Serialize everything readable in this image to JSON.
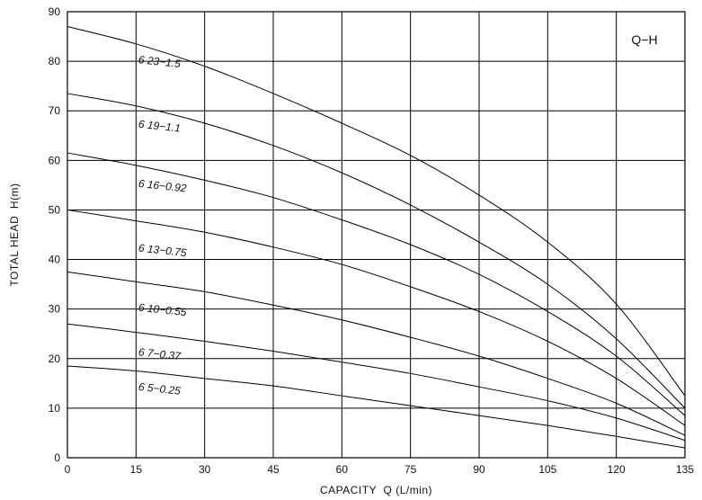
{
  "chart_data": {
    "type": "line",
    "title": "Q−H",
    "xlabel": "CAPACITY  Q (L/min)",
    "ylabel": "TOTAL HEAD  H(m)",
    "xlim": [
      0,
      135
    ],
    "ylim": [
      0,
      90
    ],
    "xticks": [
      0,
      15,
      30,
      45,
      60,
      75,
      90,
      105,
      120,
      135
    ],
    "yticks": [
      0,
      10,
      20,
      30,
      40,
      50,
      60,
      70,
      80,
      90
    ],
    "grid": true,
    "legend": "none",
    "x": [
      0,
      15,
      30,
      45,
      60,
      75,
      90,
      105,
      120,
      135
    ],
    "series": [
      {
        "name": "6 23−1.5",
        "label_at": [
          18,
          80
        ],
        "values": [
          87,
          83.5,
          79,
          73.5,
          67.5,
          61,
          53,
          43.5,
          31,
          12.5
        ]
      },
      {
        "name": "6 19−1.1",
        "label_at": [
          18,
          67
        ],
        "values": [
          73.5,
          71,
          67.5,
          63,
          57.5,
          51,
          43.5,
          35,
          24,
          10
        ]
      },
      {
        "name": "6 16−0.92",
        "label_at": [
          18,
          55
        ],
        "values": [
          61.5,
          59,
          56,
          52.5,
          48,
          43,
          37,
          29.5,
          20.5,
          8.5
        ]
      },
      {
        "name": "6 13−0.75",
        "label_at": [
          18,
          42
        ],
        "values": [
          50,
          47.8,
          45.5,
          42.5,
          39,
          34.5,
          29.5,
          23.5,
          16,
          6.5
        ]
      },
      {
        "name": "6 10−0.55",
        "label_at": [
          18,
          30
        ],
        "values": [
          37.5,
          35.5,
          33.5,
          30.8,
          27.8,
          24.3,
          20.5,
          16,
          11,
          4.5
        ]
      },
      {
        "name": "6 7−0.37",
        "label_at": [
          18,
          21
        ],
        "values": [
          27,
          25.3,
          23.5,
          21.5,
          19.3,
          17,
          14.3,
          11.5,
          8,
          3.5
        ]
      },
      {
        "name": "6 5−0.25",
        "label_at": [
          18,
          14
        ],
        "values": [
          18.5,
          17.5,
          16,
          14.5,
          12.5,
          10.5,
          8.5,
          6.5,
          4.3,
          2
        ]
      }
    ]
  }
}
